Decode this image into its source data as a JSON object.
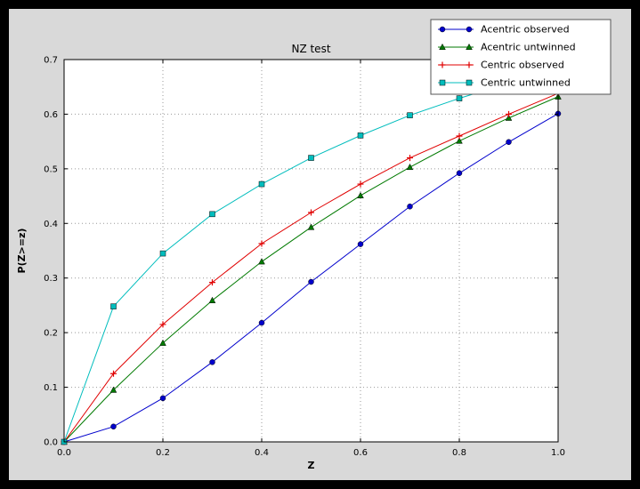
{
  "figure": {
    "outer_background": "#000000",
    "facecolor": "#d9d9d9",
    "plot_background": "#ffffff",
    "grid_color": "#999999"
  },
  "chart_data": {
    "type": "line",
    "title": "NZ test",
    "xlabel": "Z",
    "ylabel": "P(Z>=z)",
    "xlim": [
      0.0,
      1.0
    ],
    "ylim": [
      0.0,
      0.7
    ],
    "xticks": [
      0.0,
      0.2,
      0.4,
      0.6,
      0.8,
      1.0
    ],
    "yticks": [
      0.0,
      0.1,
      0.2,
      0.3,
      0.4,
      0.5,
      0.6,
      0.7
    ],
    "grid": "dotted",
    "legend_position": "upper right",
    "x": [
      0.0,
      0.1,
      0.2,
      0.3,
      0.4,
      0.5,
      0.6,
      0.7,
      0.8,
      0.9,
      1.0
    ],
    "series": [
      {
        "name": "Acentric observed",
        "color": "#0000cc",
        "marker": "circle",
        "values": [
          0.0,
          0.028,
          0.08,
          0.146,
          0.218,
          0.293,
          0.362,
          0.431,
          0.492,
          0.549,
          0.601
        ]
      },
      {
        "name": "Acentric untwinned",
        "color": "#007a00",
        "marker": "triangle",
        "values": [
          0.0,
          0.095,
          0.181,
          0.259,
          0.33,
          0.393,
          0.451,
          0.503,
          0.551,
          0.593,
          0.632
        ]
      },
      {
        "name": "Centric observed",
        "color": "#e00000",
        "marker": "plus",
        "values": [
          0.0,
          0.125,
          0.215,
          0.292,
          0.363,
          0.42,
          0.472,
          0.52,
          0.56,
          0.6,
          0.638
        ]
      },
      {
        "name": "Centric untwinned",
        "color": "#00bdbd",
        "marker": "square",
        "values": [
          0.0,
          0.248,
          0.345,
          0.417,
          0.472,
          0.52,
          0.561,
          0.598,
          0.629,
          0.657,
          0.683
        ]
      }
    ]
  }
}
